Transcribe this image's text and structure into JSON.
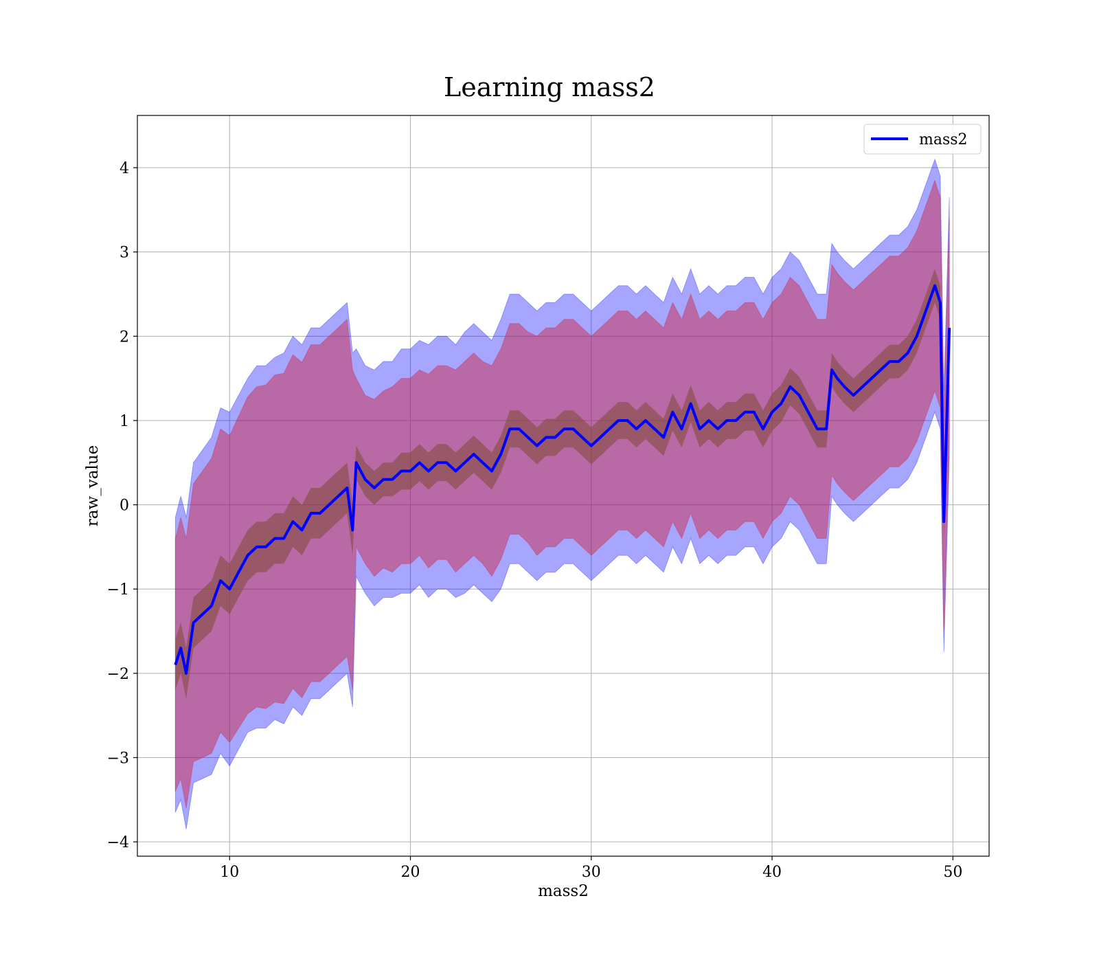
{
  "chart_data": {
    "type": "line",
    "title": "Learning mass2",
    "xlabel": "mass2",
    "ylabel": "raw_value",
    "xlim": [
      4.9,
      52.0
    ],
    "ylim": [
      -4.17,
      4.62
    ],
    "xticks": [
      10,
      20,
      30,
      40,
      50
    ],
    "xtick_labels": [
      "10",
      "20",
      "30",
      "40",
      "50"
    ],
    "yticks": [
      -4,
      -3,
      -2,
      -1,
      0,
      1,
      2,
      3,
      4
    ],
    "ytick_labels": [
      "−4",
      "−3",
      "−2",
      "−1",
      "0",
      "1",
      "2",
      "3",
      "4"
    ],
    "grid": true,
    "legend": {
      "position": "top-right",
      "entries": [
        "mass2"
      ]
    },
    "colors": {
      "line": "#0000ff",
      "outer_band": "#0000ff",
      "mid_band": "#d21f3c",
      "inner_band": "#7b4a33"
    },
    "series": [
      {
        "name": "mass2",
        "x": [
          7.0,
          7.3,
          7.6,
          8.0,
          8.5,
          9.0,
          9.5,
          10.0,
          10.5,
          11.0,
          11.5,
          12.0,
          12.5,
          13.0,
          13.5,
          14.0,
          14.5,
          15.0,
          15.5,
          16.0,
          16.5,
          16.8,
          17.0,
          17.5,
          18.0,
          18.5,
          19.0,
          19.5,
          20.0,
          20.5,
          21.0,
          21.5,
          22.0,
          22.5,
          23.0,
          23.5,
          24.0,
          24.5,
          25.0,
          25.5,
          26.0,
          26.5,
          27.0,
          27.5,
          28.0,
          28.5,
          29.0,
          29.5,
          30.0,
          30.5,
          31.0,
          31.5,
          32.0,
          32.5,
          33.0,
          33.5,
          34.0,
          34.5,
          35.0,
          35.5,
          36.0,
          36.5,
          37.0,
          37.5,
          38.0,
          38.5,
          39.0,
          39.5,
          40.0,
          40.5,
          41.0,
          41.5,
          42.0,
          42.5,
          43.0,
          43.3,
          43.6,
          44.0,
          44.5,
          45.0,
          45.5,
          46.0,
          46.5,
          47.0,
          47.5,
          48.0,
          48.5,
          49.0,
          49.3,
          49.5,
          49.8
        ],
        "y": [
          -1.9,
          -1.7,
          -2.0,
          -1.4,
          -1.3,
          -1.2,
          -0.9,
          -1.0,
          -0.8,
          -0.6,
          -0.5,
          -0.5,
          -0.4,
          -0.4,
          -0.2,
          -0.3,
          -0.1,
          -0.1,
          0.0,
          0.1,
          0.2,
          -0.3,
          0.5,
          0.3,
          0.2,
          0.3,
          0.3,
          0.4,
          0.4,
          0.5,
          0.4,
          0.5,
          0.5,
          0.4,
          0.5,
          0.6,
          0.5,
          0.4,
          0.6,
          0.9,
          0.9,
          0.8,
          0.7,
          0.8,
          0.8,
          0.9,
          0.9,
          0.8,
          0.7,
          0.8,
          0.9,
          1.0,
          1.0,
          0.9,
          1.0,
          0.9,
          0.8,
          1.1,
          0.9,
          1.2,
          0.9,
          1.0,
          0.9,
          1.0,
          1.0,
          1.1,
          1.1,
          0.9,
          1.1,
          1.2,
          1.4,
          1.3,
          1.1,
          0.9,
          0.9,
          1.6,
          1.5,
          1.4,
          1.3,
          1.4,
          1.5,
          1.6,
          1.7,
          1.7,
          1.8,
          2.0,
          2.3,
          2.6,
          2.4,
          -0.2,
          2.1
        ],
        "band_mid_half_width": [
          1.5,
          1.55,
          1.6,
          1.65,
          1.7,
          1.75,
          1.8,
          1.82,
          1.85,
          1.88,
          1.9,
          1.92,
          1.94,
          1.96,
          1.98,
          1.99,
          2.0,
          2.0,
          2.0,
          2.0,
          2.0,
          1.9,
          1.0,
          1.0,
          1.05,
          1.05,
          1.1,
          1.1,
          1.1,
          1.1,
          1.15,
          1.15,
          1.15,
          1.2,
          1.2,
          1.2,
          1.2,
          1.25,
          1.25,
          1.25,
          1.25,
          1.25,
          1.3,
          1.3,
          1.3,
          1.3,
          1.3,
          1.3,
          1.3,
          1.3,
          1.3,
          1.3,
          1.3,
          1.3,
          1.3,
          1.3,
          1.3,
          1.3,
          1.3,
          1.3,
          1.3,
          1.3,
          1.3,
          1.3,
          1.3,
          1.3,
          1.3,
          1.3,
          1.3,
          1.3,
          1.3,
          1.3,
          1.3,
          1.3,
          1.3,
          1.25,
          1.25,
          1.25,
          1.25,
          1.25,
          1.25,
          1.25,
          1.25,
          1.25,
          1.25,
          1.25,
          1.25,
          1.25,
          1.25,
          1.3,
          1.3
        ],
        "band_outer_half_width": [
          1.75,
          1.8,
          1.85,
          1.9,
          1.95,
          2.0,
          2.05,
          2.1,
          2.1,
          2.1,
          2.15,
          2.15,
          2.15,
          2.2,
          2.2,
          2.2,
          2.2,
          2.2,
          2.2,
          2.2,
          2.2,
          2.1,
          1.35,
          1.35,
          1.4,
          1.4,
          1.4,
          1.45,
          1.45,
          1.45,
          1.5,
          1.5,
          1.5,
          1.5,
          1.55,
          1.55,
          1.55,
          1.55,
          1.6,
          1.6,
          1.6,
          1.6,
          1.6,
          1.6,
          1.6,
          1.6,
          1.6,
          1.6,
          1.6,
          1.6,
          1.6,
          1.6,
          1.6,
          1.6,
          1.6,
          1.6,
          1.6,
          1.6,
          1.6,
          1.6,
          1.6,
          1.6,
          1.6,
          1.6,
          1.6,
          1.6,
          1.6,
          1.6,
          1.6,
          1.6,
          1.6,
          1.6,
          1.6,
          1.6,
          1.6,
          1.5,
          1.5,
          1.5,
          1.5,
          1.5,
          1.5,
          1.5,
          1.5,
          1.5,
          1.5,
          1.5,
          1.5,
          1.5,
          1.5,
          1.55,
          1.55
        ],
        "band_inner_half_width": [
          0.3,
          0.3,
          0.3,
          0.3,
          0.3,
          0.3,
          0.3,
          0.3,
          0.3,
          0.3,
          0.3,
          0.3,
          0.3,
          0.3,
          0.3,
          0.3,
          0.3,
          0.3,
          0.3,
          0.3,
          0.3,
          0.3,
          0.2,
          0.2,
          0.2,
          0.2,
          0.2,
          0.22,
          0.22,
          0.22,
          0.22,
          0.22,
          0.22,
          0.22,
          0.22,
          0.22,
          0.22,
          0.22,
          0.22,
          0.22,
          0.22,
          0.22,
          0.22,
          0.22,
          0.22,
          0.22,
          0.22,
          0.22,
          0.22,
          0.22,
          0.22,
          0.22,
          0.22,
          0.22,
          0.22,
          0.22,
          0.22,
          0.22,
          0.22,
          0.22,
          0.22,
          0.22,
          0.22,
          0.22,
          0.22,
          0.22,
          0.22,
          0.22,
          0.22,
          0.22,
          0.22,
          0.22,
          0.22,
          0.22,
          0.22,
          0.2,
          0.2,
          0.2,
          0.2,
          0.2,
          0.2,
          0.2,
          0.2,
          0.2,
          0.2,
          0.2,
          0.2,
          0.2,
          0.2,
          0.22,
          0.22
        ]
      }
    ]
  }
}
